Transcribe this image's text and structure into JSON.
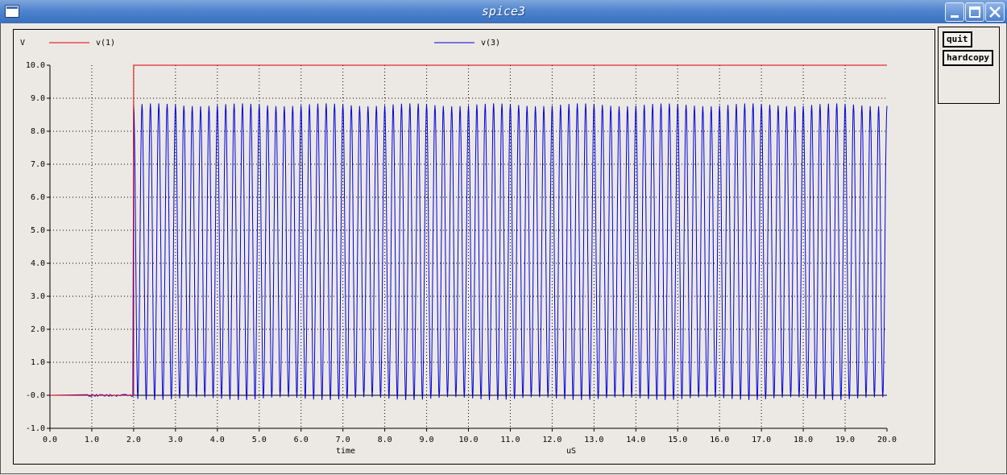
{
  "window": {
    "title": "spice3"
  },
  "buttons": {
    "quit": "quit",
    "hardcopy": "hardcopy"
  },
  "chart_data": {
    "type": "line",
    "ylabel": "V",
    "xlabel": "time",
    "xunit": "uS",
    "xlim": [
      0.0,
      20.0
    ],
    "ylim": [
      -1.0,
      10.0
    ],
    "grid": true,
    "x_ticks": [
      "0.0",
      "1.0",
      "2.0",
      "3.0",
      "4.0",
      "5.0",
      "6.0",
      "7.0",
      "8.0",
      "9.0",
      "10.0",
      "11.0",
      "12.0",
      "13.0",
      "14.0",
      "15.0",
      "16.0",
      "17.0",
      "18.0",
      "19.0",
      "20.0"
    ],
    "y_ticks": [
      "-1.0",
      "-0.0",
      "1.0",
      "2.0",
      "3.0",
      "4.0",
      "5.0",
      "6.0",
      "7.0",
      "8.0",
      "9.0",
      "10.0"
    ],
    "series": [
      {
        "name": "v(1)",
        "color": "#e00000",
        "kind": "step",
        "x": [
          0.0,
          2.0,
          2.0,
          20.0
        ],
        "y": [
          0.0,
          0.0,
          10.0,
          10.0
        ]
      },
      {
        "name": "v(3)",
        "color": "#0000e0",
        "kind": "oscillation",
        "x_start": 2.0,
        "x_end": 20.0,
        "period_us": 0.2,
        "y_min": -0.1,
        "y_max": 8.8,
        "pre_level": 0.0
      }
    ]
  },
  "colors": {
    "v1": "#e00000",
    "v3": "#0000e0",
    "grid": "#000000"
  }
}
